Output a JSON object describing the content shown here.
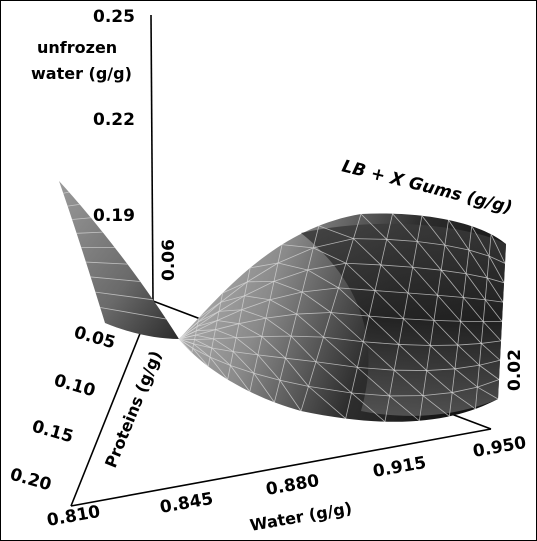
{
  "chart_data": {
    "type": "surface",
    "z_axis": {
      "label_line1": "unfrozen",
      "label_line2": "water (g/g)",
      "ticks": [
        "0.25",
        "0.22",
        "0.19"
      ],
      "range": [
        0.16,
        0.25
      ]
    },
    "x_axis": {
      "label": "Water (g/g)",
      "ticks": [
        "0.810",
        "0.845",
        "0.880",
        "0.915",
        "0.950"
      ],
      "range": [
        0.81,
        0.95
      ]
    },
    "y_axis": {
      "label": "Proteins (g/g)",
      "ticks": [
        "0.05",
        "0.10",
        "0.15",
        "0.20"
      ],
      "range": [
        0.05,
        0.2
      ]
    },
    "w_axis": {
      "label": "LB  + X Gums (g/g)",
      "ticks": [
        "0.06",
        "0.02"
      ]
    },
    "grid": true,
    "colors": {
      "surface_dark": "#141414",
      "surface_light": "#c8c8c8",
      "mesh": "#d9d9d9",
      "axes": "#000000"
    }
  }
}
